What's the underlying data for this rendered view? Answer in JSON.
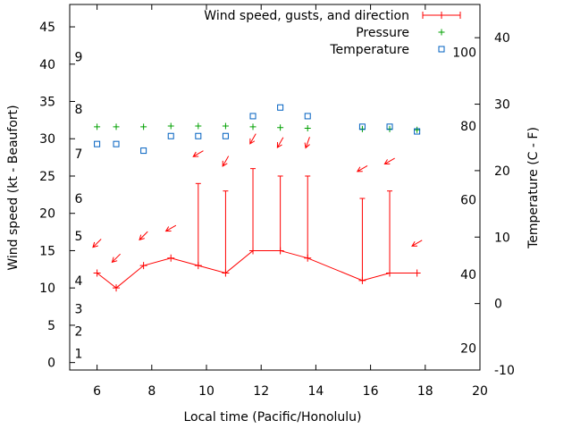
{
  "chart_data": {
    "type": "line",
    "title": "",
    "xlabel": "Local time (Pacific/Honolulu)",
    "ylabel": "Wind speed (kt - Beaufort)",
    "y2label": "Temperature (C - F)",
    "xlim": [
      5,
      20
    ],
    "ylim": [
      -1,
      48
    ],
    "y2lim": [
      -10,
      45
    ],
    "x_ticks": [
      6,
      8,
      10,
      12,
      14,
      16,
      18,
      20
    ],
    "y_ticks": [
      0,
      5,
      10,
      15,
      20,
      25,
      30,
      35,
      40,
      45
    ],
    "y2_ticks": [
      -10,
      0,
      10,
      20,
      30,
      40
    ],
    "beaufort_labels": [
      {
        "label": "1",
        "kt": 1.2
      },
      {
        "label": "2",
        "kt": 4.2
      },
      {
        "label": "3",
        "kt": 7.2
      },
      {
        "label": "4",
        "kt": 11.0
      },
      {
        "label": "5",
        "kt": 17.0
      },
      {
        "label": "6",
        "kt": 22.0
      },
      {
        "label": "7",
        "kt": 28.0
      },
      {
        "label": "8",
        "kt": 34.0
      },
      {
        "label": "9",
        "kt": 41.0
      }
    ],
    "fahrenheit_labels": [
      {
        "label": "20",
        "c": -6.7
      },
      {
        "label": "40",
        "c": 4.4
      },
      {
        "label": "60",
        "c": 15.6
      },
      {
        "label": "80",
        "c": 26.7
      },
      {
        "label": "100",
        "c": 37.8
      }
    ],
    "legend": {
      "position": "top-right",
      "entries": [
        "Wind speed, gusts, and direction",
        "Pressure",
        "Temperature"
      ]
    },
    "colors": {
      "wind": "#ff0000",
      "pressure": "#00a000",
      "temperature": "#0060c0"
    },
    "series": [
      {
        "name": "Wind speed, gusts, and direction",
        "x": [
          6,
          6.7,
          7.7,
          8.7,
          9.7,
          10.7,
          11.7,
          12.7,
          13.7,
          15.7,
          16.7,
          17.7
        ],
        "values": [
          12,
          10,
          13,
          14,
          13,
          12,
          15,
          15,
          14,
          11,
          12,
          12
        ],
        "gusts": [
          null,
          null,
          null,
          null,
          24,
          23,
          26,
          25,
          25,
          22,
          23,
          null
        ],
        "direction_arrows": [
          {
            "x": 6,
            "kt": 16,
            "direction_deg": 45
          },
          {
            "x": 6.7,
            "kt": 14,
            "direction_deg": 45
          },
          {
            "x": 7.7,
            "kt": 17,
            "direction_deg": 45
          },
          {
            "x": 8.7,
            "kt": 18,
            "direction_deg": 30
          },
          {
            "x": 9.7,
            "kt": 28,
            "direction_deg": 30
          },
          {
            "x": 10.7,
            "kt": 27,
            "direction_deg": 60
          },
          {
            "x": 11.7,
            "kt": 30,
            "direction_deg": 60
          },
          {
            "x": 12.7,
            "kt": 29.5,
            "direction_deg": 60
          },
          {
            "x": 13.7,
            "kt": 29.5,
            "direction_deg": 70
          },
          {
            "x": 15.7,
            "kt": 26,
            "direction_deg": 30
          },
          {
            "x": 16.7,
            "kt": 27,
            "direction_deg": 30
          },
          {
            "x": 17.7,
            "kt": 16,
            "direction_deg": 30
          }
        ]
      },
      {
        "name": "Pressure",
        "x": [
          6,
          6.7,
          7.7,
          8.7,
          9.7,
          10.7,
          11.7,
          12.7,
          13.7,
          15.7,
          16.7,
          17.7
        ],
        "values": [
          31.6,
          31.6,
          31.6,
          31.7,
          31.7,
          31.7,
          31.6,
          31.5,
          31.4,
          31.3,
          31.3,
          31.2
        ]
      },
      {
        "name": "Temperature",
        "x": [
          6,
          6.7,
          7.7,
          8.7,
          9.7,
          10.7,
          11.7,
          12.7,
          13.7,
          15.7,
          16.7,
          17.7
        ],
        "values": [
          24,
          24,
          23,
          25.2,
          25.2,
          25.2,
          28.2,
          29.5,
          28.2,
          26.6,
          26.6,
          25.9
        ],
        "axis": "y2"
      }
    ]
  }
}
